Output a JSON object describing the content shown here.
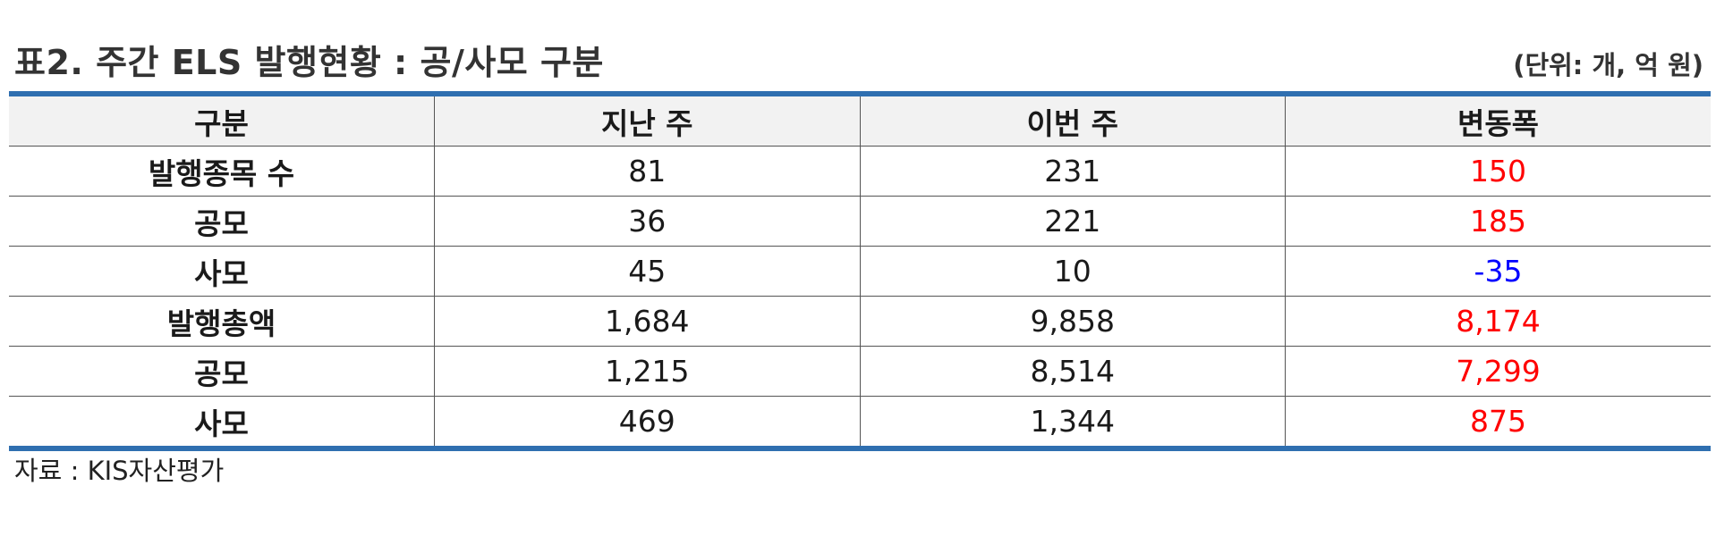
{
  "title": "표2. 주간 ELS 발행현황 : 공/사모 구분",
  "unit": "(단위: 개, 억 원)",
  "colors": {
    "rule": "#2f6fb0",
    "header_bg": "#f2f2f2",
    "positive_change": "#ff0000",
    "negative_change": "#0000ff"
  },
  "table": {
    "headers": [
      "구분",
      "지난 주",
      "이번 주",
      "변동폭"
    ],
    "rows": [
      {
        "label": "발행종목 수",
        "last_week": "81",
        "this_week": "231",
        "change": "150",
        "sign": "pos"
      },
      {
        "label": "공모",
        "last_week": "36",
        "this_week": "221",
        "change": "185",
        "sign": "pos"
      },
      {
        "label": "사모",
        "last_week": "45",
        "this_week": "10",
        "change": "-35",
        "sign": "neg"
      },
      {
        "label": "발행총액",
        "last_week": "1,684",
        "this_week": "9,858",
        "change": "8,174",
        "sign": "pos"
      },
      {
        "label": "공모",
        "last_week": "1,215",
        "this_week": "8,514",
        "change": "7,299",
        "sign": "pos"
      },
      {
        "label": "사모",
        "last_week": "469",
        "this_week": "1,344",
        "change": "875",
        "sign": "pos"
      }
    ]
  },
  "source": "자료 : KIS자산평가"
}
